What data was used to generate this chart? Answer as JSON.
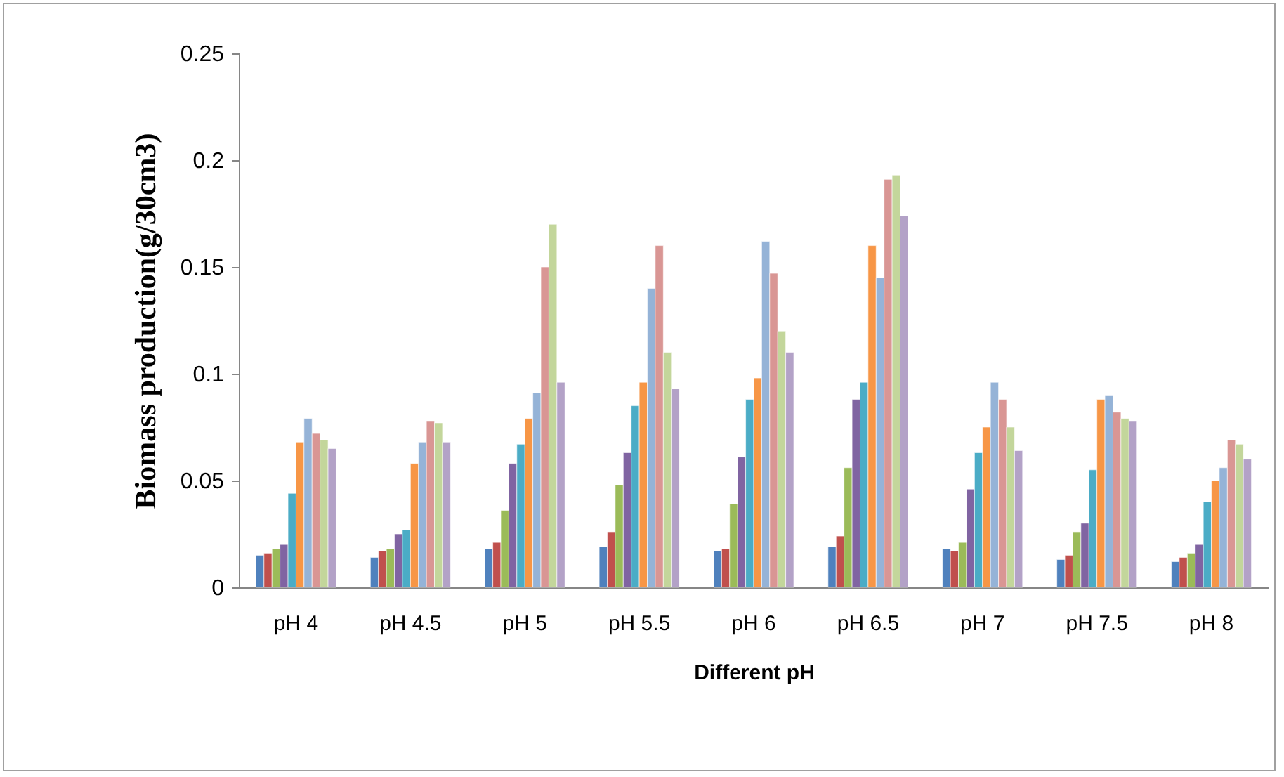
{
  "chart_data": {
    "type": "bar",
    "xlabel": "Different pH",
    "ylabel": "Biomass production(g/30cm3)",
    "categories": [
      "pH 4",
      "pH 4.5",
      "pH 5",
      "pH 5.5",
      "pH 6",
      "pH 6.5",
      "pH 7",
      "pH 7.5",
      "pH 8"
    ],
    "series": [
      {
        "color": "#4f81bd",
        "values": [
          0.015,
          0.014,
          0.018,
          0.019,
          0.017,
          0.019,
          0.018,
          0.013,
          0.012
        ]
      },
      {
        "color": "#c0504d",
        "values": [
          0.016,
          0.017,
          0.021,
          0.026,
          0.018,
          0.024,
          0.017,
          0.015,
          0.014
        ]
      },
      {
        "color": "#9bbb59",
        "values": [
          0.018,
          0.018,
          0.036,
          0.048,
          0.039,
          0.056,
          0.021,
          0.026,
          0.016
        ]
      },
      {
        "color": "#8064a2",
        "values": [
          0.02,
          0.025,
          0.058,
          0.063,
          0.061,
          0.088,
          0.046,
          0.03,
          0.02
        ]
      },
      {
        "color": "#4bacc6",
        "values": [
          0.044,
          0.027,
          0.067,
          0.085,
          0.088,
          0.096,
          0.063,
          0.055,
          0.04
        ]
      },
      {
        "color": "#f79646",
        "values": [
          0.068,
          0.058,
          0.079,
          0.096,
          0.098,
          0.16,
          0.075,
          0.088,
          0.05
        ]
      },
      {
        "color": "#95b3d7",
        "values": [
          0.079,
          0.068,
          0.091,
          0.14,
          0.162,
          0.145,
          0.096,
          0.09,
          0.056
        ]
      },
      {
        "color": "#d99694",
        "values": [
          0.072,
          0.078,
          0.15,
          0.16,
          0.147,
          0.191,
          0.088,
          0.082,
          0.069
        ]
      },
      {
        "color": "#c3d69b",
        "values": [
          0.069,
          0.077,
          0.17,
          0.11,
          0.12,
          0.193,
          0.075,
          0.079,
          0.067
        ]
      },
      {
        "color": "#b3a2c7",
        "values": [
          0.065,
          0.068,
          0.096,
          0.093,
          0.11,
          0.174,
          0.064,
          0.078,
          0.06
        ]
      }
    ],
    "ylim": [
      0,
      0.25
    ],
    "yticks": [
      0,
      0.05,
      0.1,
      0.15,
      0.2,
      0.25
    ],
    "grid": false,
    "legend": false
  }
}
